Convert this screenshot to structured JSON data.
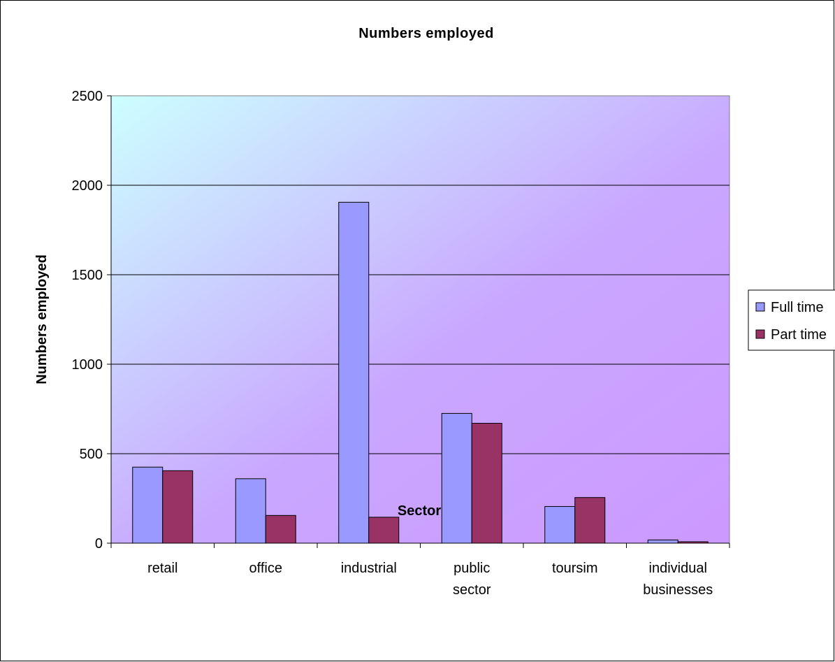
{
  "chart_data": {
    "type": "bar",
    "title": "Numbers employed",
    "xlabel": "Sector",
    "ylabel": "Numbers employed",
    "categories": [
      [
        "retail"
      ],
      [
        "office"
      ],
      [
        "industrial"
      ],
      [
        "public",
        "sector"
      ],
      [
        "toursim"
      ],
      [
        "individual",
        "businesses"
      ]
    ],
    "series": [
      {
        "name": "Full time",
        "values": [
          425,
          360,
          1905,
          725,
          205,
          18
        ],
        "color": "#9999FF"
      },
      {
        "name": "Part time",
        "values": [
          405,
          155,
          145,
          670,
          255,
          8
        ],
        "color": "#993366"
      }
    ],
    "ylim": [
      0,
      2500
    ],
    "yticks": [
      0,
      500,
      1000,
      1500,
      2000,
      2500
    ],
    "grid": true,
    "legend_position": "right",
    "plot_background": {
      "gradient_start": "#CCFFFF",
      "gradient_end": "#CC99FF"
    }
  }
}
